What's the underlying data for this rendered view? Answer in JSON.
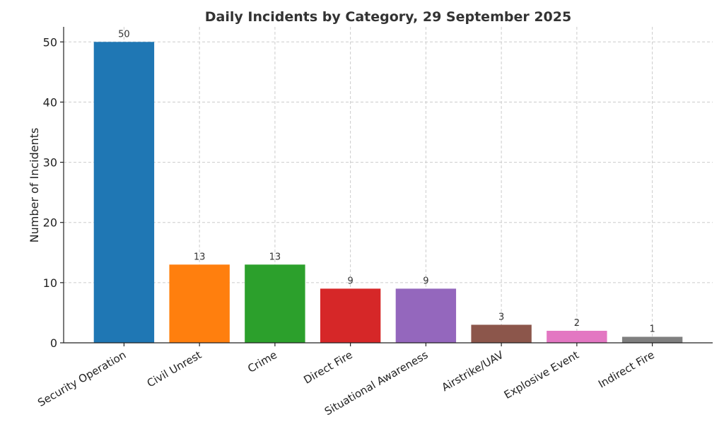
{
  "chart_data": {
    "type": "bar",
    "title": "Daily Incidents by Category, 29 September 2025",
    "xlabel": "",
    "ylabel": "Number of Incidents",
    "categories": [
      "Security Operation",
      "Civil Unrest",
      "Crime",
      "Direct Fire",
      "Situational Awareness",
      "Airstrike/UAV",
      "Explosive Event",
      "Indirect Fire"
    ],
    "values": [
      50,
      13,
      13,
      9,
      9,
      3,
      2,
      1
    ],
    "colors": [
      "#1f77b4",
      "#ff7f0e",
      "#2ca02c",
      "#d62728",
      "#9467bd",
      "#8c564b",
      "#e377c2",
      "#7f7f7f"
    ],
    "ylim": [
      0,
      52.5
    ],
    "yticks": [
      0,
      10,
      20,
      30,
      40,
      50
    ],
    "grid": true,
    "data_labels": true
  }
}
